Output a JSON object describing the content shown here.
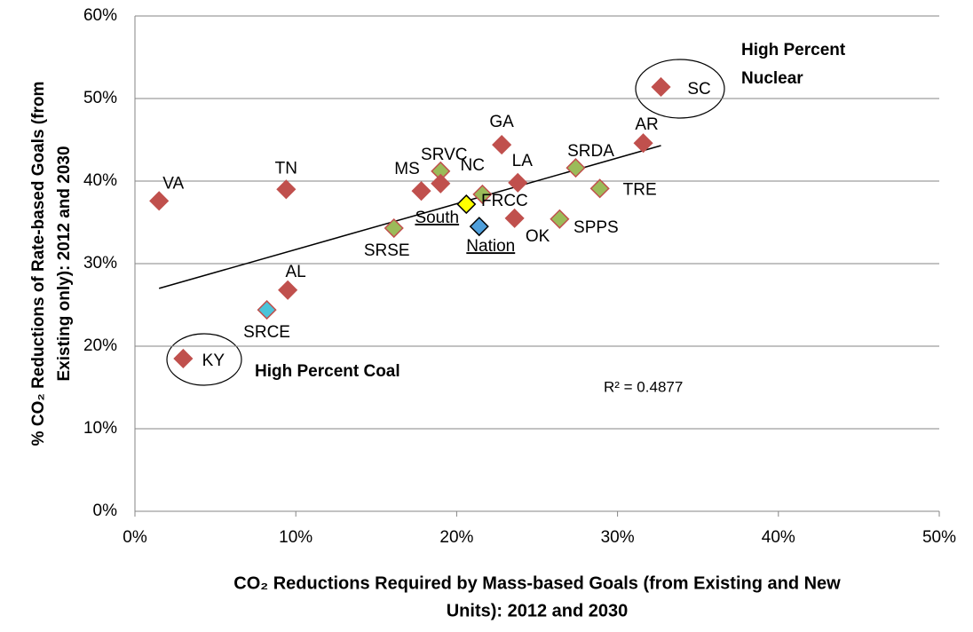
{
  "chart_data": {
    "type": "scatter",
    "x_label": [
      "CO₂ Reductions Required by Mass-based Goals (from Existing and New",
      "Units): 2012 and 2030"
    ],
    "y_label": [
      "% CO₂ Reductions of Rate-based Goals (from",
      "Existing only): 2012 and 2030"
    ],
    "labels": [
      "VA",
      "TN",
      "AL",
      "KY",
      "SRCE",
      "MS",
      "SRVC",
      "NC",
      "SRSE",
      "South",
      "Nation",
      "FRCC",
      "GA",
      "LA",
      "OK",
      "SPPS",
      "SRDA",
      "TRE",
      "AR",
      "SC"
    ],
    "x": [
      1.5,
      9.4,
      9.5,
      3.0,
      8.2,
      17.8,
      19.0,
      19.0,
      16.1,
      20.6,
      21.4,
      21.6,
      22.8,
      23.8,
      23.6,
      26.4,
      27.4,
      28.9,
      31.6,
      32.7
    ],
    "values": [
      37.6,
      39.0,
      26.8,
      18.5,
      24.4,
      38.8,
      41.2,
      39.7,
      34.3,
      37.2,
      34.5,
      38.4,
      44.4,
      39.8,
      35.5,
      35.4,
      41.6,
      39.1,
      44.6,
      51.4
    ],
    "colors": [
      "#c0504d",
      "#c0504d",
      "#c0504d",
      "#c0504d",
      "#4bc4d9",
      "#c0504d",
      "#9bbb59",
      "#c0504d",
      "#9bbb59",
      "#ffff00",
      "#4f9fdb",
      "#9bbb59",
      "#c0504d",
      "#c0504d",
      "#c0504d",
      "#9bbb59",
      "#9bbb59",
      "#9bbb59",
      "#c0504d",
      "#c0504d"
    ],
    "edge_colors": [
      "#c0504d",
      "#c0504d",
      "#c0504d",
      "#c0504d",
      "#c0504d",
      "#c0504d",
      "#c0504d",
      "#c0504d",
      "#c0504d",
      "#000000",
      "#000000",
      "#c0504d",
      "#c0504d",
      "#c0504d",
      "#c0504d",
      "#c0504d",
      "#c0504d",
      "#c0504d",
      "#c0504d",
      "#c0504d"
    ],
    "trendline": {
      "x": [
        1.5,
        32.7
      ],
      "y": [
        27.0,
        44.3
      ],
      "label": "R² = 0.4877"
    },
    "annotations": [
      [
        "High Percent",
        "Nuclear"
      ],
      [
        "High Percent Coal"
      ]
    ],
    "xlim": [
      0,
      50
    ],
    "ylim": [
      0,
      60
    ],
    "xticks": [
      {
        "value": 0,
        "label": "0%"
      },
      {
        "value": 10,
        "label": "10%"
      },
      {
        "value": 20,
        "label": "20%"
      },
      {
        "value": 30,
        "label": "30%"
      },
      {
        "value": 40,
        "label": "40%"
      },
      {
        "value": 50,
        "label": "50%"
      }
    ],
    "yticks": [
      {
        "value": 0,
        "label": "0%"
      },
      {
        "value": 10,
        "label": "10%"
      },
      {
        "value": 20,
        "label": "20%"
      },
      {
        "value": 30,
        "label": "30%"
      },
      {
        "value": 40,
        "label": "40%"
      },
      {
        "value": 50,
        "label": "50%"
      },
      {
        "value": 60,
        "label": "60%"
      }
    ],
    "grid": true
  }
}
